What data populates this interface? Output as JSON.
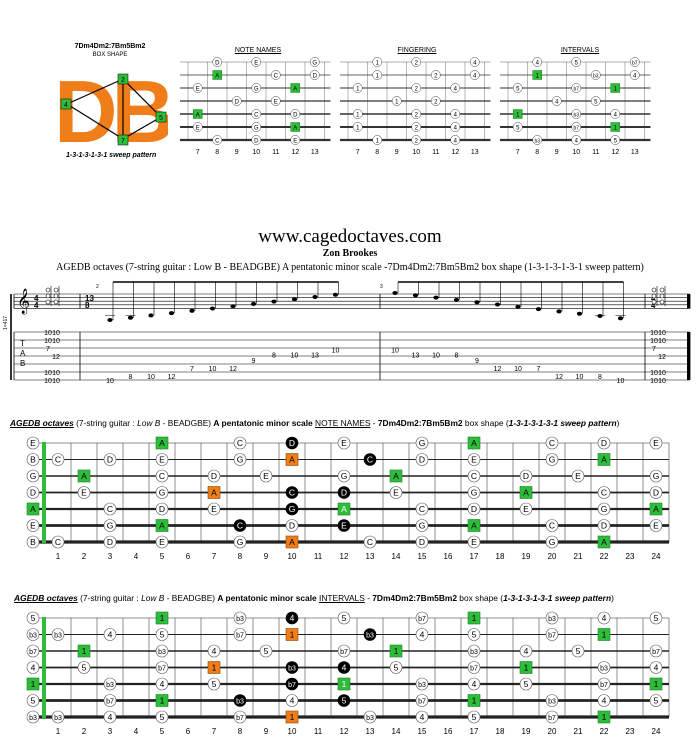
{
  "logo": {
    "title": "7Dm4Dm2:7Bm5Bm2",
    "subtitle": "BOX SHAPE",
    "letters": "DB",
    "finger_numbers": [
      "4",
      "2",
      "5",
      "7"
    ],
    "pattern": "1-3-1-3-1-3-1 sweep pattern"
  },
  "mini": {
    "titles": [
      "NOTE NAMES",
      "FINGERING",
      "INTERVALS"
    ],
    "frets": [
      "7",
      "8",
      "9",
      "10",
      "11",
      "12",
      "13"
    ],
    "notes_strings": [
      [
        "",
        "D",
        "",
        "E",
        "",
        "",
        "G"
      ],
      [
        "",
        "A",
        "",
        "",
        "C",
        "",
        "D"
      ],
      [
        "E",
        "",
        "",
        "G",
        "",
        "A",
        ""
      ],
      [
        "",
        "",
        "D",
        "",
        "E",
        "",
        ""
      ],
      [
        "A",
        "",
        "",
        "C",
        "",
        "D",
        ""
      ],
      [
        "E",
        "",
        "",
        "G",
        "",
        "A",
        ""
      ],
      [
        "",
        "C",
        "",
        "D",
        "",
        "E",
        ""
      ]
    ],
    "finger_strings": [
      [
        "",
        "1",
        "",
        "2",
        "",
        "",
        "4"
      ],
      [
        "",
        "1",
        "",
        "",
        "2",
        "",
        "4"
      ],
      [
        "1",
        "",
        "",
        "2",
        "",
        "4",
        ""
      ],
      [
        "",
        "",
        "1",
        "",
        "2",
        "",
        ""
      ],
      [
        "1",
        "",
        "",
        "2",
        "",
        "4",
        ""
      ],
      [
        "1",
        "",
        "",
        "2",
        "",
        "4",
        ""
      ],
      [
        "",
        "1",
        "",
        "2",
        "",
        "4",
        ""
      ]
    ],
    "interval_strings": [
      [
        "",
        "4",
        "",
        "5",
        "",
        "",
        "b7"
      ],
      [
        "",
        "1",
        "",
        "",
        "b3",
        "",
        "4"
      ],
      [
        "5",
        "",
        "",
        "b7",
        "",
        "1",
        ""
      ],
      [
        "",
        "",
        "4",
        "",
        "5",
        "",
        ""
      ],
      [
        "1",
        "",
        "",
        "b3",
        "",
        "4",
        ""
      ],
      [
        "5",
        "",
        "",
        "b7",
        "",
        "1",
        ""
      ],
      [
        "",
        "b3",
        "",
        "4",
        "",
        "5",
        ""
      ]
    ],
    "mini_extra": [
      "b7",
      "4",
      "b3"
    ]
  },
  "header": {
    "site": "www.cagedoctaves.com",
    "composer": "Zon Brookes",
    "description": "AGEDB octaves (7-string guitar : Low B - BEADGBE) A pentatonic minor scale  -7Dm4Dm2:7Bm5Bm2 box shape (1-3-1-3-1-3-1 sweep pattern)"
  },
  "score": {
    "time_sig_top": "4",
    "time_sig_bottom": "4",
    "mid_sig_top": "13",
    "mid_sig_bottom": "8",
    "tab_label": [
      "T",
      "A",
      "B"
    ],
    "side_text": "1=417",
    "measure_numbers": [
      "2",
      "3"
    ],
    "start_chord": [
      "10",
      "10",
      "7",
      "12",
      "10",
      "10"
    ],
    "end_chord": [
      "10",
      "10",
      "7",
      "12",
      "10",
      "10"
    ],
    "up_notes": [
      "10",
      "8",
      "10",
      "12",
      "7",
      "10",
      "12",
      "9",
      "8",
      "10",
      "13",
      "10"
    ],
    "down_notes": [
      "10",
      "13",
      "10",
      "8",
      "9",
      "12",
      "10",
      "7",
      "12",
      "10",
      "8",
      "10"
    ]
  },
  "board1": {
    "title_parts": [
      "AGEDB octaves",
      " (7-string guitar : ",
      "Low B",
      " - BEADGBE) ",
      "A pentatonic minor scale",
      " ",
      "NOTE NAMES",
      " - ",
      "7Dm4Dm2:7Bm5Bm2",
      " box shape (",
      "1-3-1-3-1-3-1 sweep pattern",
      ")"
    ],
    "open": [
      "E",
      "B",
      "G",
      "D",
      "A",
      "E",
      "B"
    ],
    "strings": [
      [
        "",
        "",
        "",
        "",
        "A",
        "",
        "",
        "C",
        "",
        "D",
        "",
        "E",
        "",
        "",
        "G",
        "",
        "A",
        "",
        "",
        "C",
        "",
        "D",
        "",
        "E"
      ],
      [
        "C",
        "",
        "D",
        "",
        "E",
        "",
        "",
        "G",
        "",
        "A",
        "",
        "",
        "C",
        "",
        "D",
        "",
        "E",
        "",
        "",
        "G",
        "",
        "A",
        "",
        ""
      ],
      [
        "",
        "A",
        "",
        "",
        "C",
        "",
        "D",
        "",
        "E",
        "",
        "",
        "G",
        "",
        "A",
        "",
        "",
        "C",
        "",
        "D",
        "",
        "E",
        "",
        "",
        "G"
      ],
      [
        "",
        "E",
        "",
        "",
        "G",
        "",
        "A",
        "",
        "",
        "C",
        "",
        "D",
        "",
        "E",
        "",
        "",
        "G",
        "",
        "A",
        "",
        "",
        "C",
        "",
        "D"
      ],
      [
        "",
        "",
        "C",
        "",
        "D",
        "",
        "E",
        "",
        "",
        "G",
        "",
        "A",
        "",
        "",
        "C",
        "",
        "D",
        "",
        "E",
        "",
        "",
        "G",
        "",
        "A"
      ],
      [
        "",
        "",
        "G",
        "",
        "A",
        "",
        "",
        "C",
        "",
        "D",
        "",
        "E",
        "",
        "",
        "G",
        "",
        "A",
        "",
        "",
        "C",
        "",
        "D",
        "",
        "E"
      ],
      [
        "C",
        "",
        "D",
        "",
        "E",
        "",
        "",
        "G",
        "",
        "A",
        "",
        "",
        "C",
        "",
        "D",
        "",
        "E",
        "",
        "",
        "G",
        "",
        "A",
        "",
        ""
      ]
    ],
    "frets": [
      "1",
      "2",
      "3",
      "4",
      "5",
      "6",
      "7",
      "8",
      "9",
      "10",
      "11",
      "12",
      "13",
      "14",
      "15",
      "16",
      "17",
      "18",
      "19",
      "20",
      "21",
      "22",
      "23",
      "24"
    ]
  },
  "board2": {
    "title_parts": [
      "AGEDB octaves",
      " (7-string guitar : ",
      "Low B",
      " - BEADGBE) ",
      "A pentatonic minor scale",
      " ",
      "INTERVALS",
      " - ",
      "7Dm4Dm2:7Bm5Bm2",
      " box shape (",
      "1-3-1-3-1-3-1 sweep pattern",
      ")"
    ],
    "open": [
      "5",
      "b3",
      "b7",
      "4",
      "1",
      "5",
      "b3"
    ],
    "strings": [
      [
        "",
        "",
        "",
        "",
        "1",
        "",
        "",
        "b3",
        "",
        "4",
        "",
        "5",
        "",
        "",
        "b7",
        "",
        "1",
        "",
        "",
        "b3",
        "",
        "4",
        "",
        "5"
      ],
      [
        "b3",
        "",
        "4",
        "",
        "5",
        "",
        "",
        "b7",
        "",
        "1",
        "",
        "",
        "b3",
        "",
        "4",
        "",
        "5",
        "",
        "",
        "b7",
        "",
        "1",
        "",
        ""
      ],
      [
        "",
        "1",
        "",
        "",
        "b3",
        "",
        "4",
        "",
        "5",
        "",
        "",
        "b7",
        "",
        "1",
        "",
        "",
        "b3",
        "",
        "4",
        "",
        "5",
        "",
        "",
        "b7"
      ],
      [
        "",
        "5",
        "",
        "",
        "b7",
        "",
        "1",
        "",
        "",
        "b3",
        "",
        "4",
        "",
        "5",
        "",
        "",
        "b7",
        "",
        "1",
        "",
        "",
        "b3",
        "",
        "4"
      ],
      [
        "",
        "",
        "b3",
        "",
        "4",
        "",
        "5",
        "",
        "",
        "b7",
        "",
        "1",
        "",
        "",
        "b3",
        "",
        "4",
        "",
        "5",
        "",
        "",
        "b7",
        "",
        "1"
      ],
      [
        "",
        "",
        "b7",
        "",
        "1",
        "",
        "",
        "b3",
        "",
        "4",
        "",
        "5",
        "",
        "",
        "b7",
        "",
        "1",
        "",
        "",
        "b3",
        "",
        "4",
        "",
        "5"
      ],
      [
        "b3",
        "",
        "4",
        "",
        "5",
        "",
        "",
        "b7",
        "",
        "1",
        "",
        "",
        "b3",
        "",
        "4",
        "",
        "5",
        "",
        "",
        "b7",
        "",
        "1",
        "",
        ""
      ]
    ],
    "frets": [
      "1",
      "2",
      "3",
      "4",
      "5",
      "6",
      "7",
      "8",
      "9",
      "10",
      "11",
      "12",
      "13",
      "14",
      "15",
      "16",
      "17",
      "18",
      "19",
      "20",
      "21",
      "22",
      "23",
      "24"
    ]
  },
  "highlights": {
    "green_root": "#2ebd3a",
    "orange_box": "#ef7d1a",
    "black_box": "#000000",
    "string_highlight": "#2ebd3a",
    "mini_fade": "#9fdcdc",
    "black_cells": [
      [
        1,
        10
      ],
      [
        2,
        9
      ],
      [
        2,
        13
      ],
      [
        3,
        11
      ],
      [
        4,
        10
      ],
      [
        4,
        12
      ],
      [
        5,
        10
      ],
      [
        5,
        12
      ],
      [
        6,
        8
      ],
      [
        6,
        9
      ],
      [
        6,
        12
      ]
    ],
    "orange_cells": [
      [
        2,
        10
      ],
      [
        4,
        7
      ],
      [
        7,
        10
      ]
    ],
    "green_cells": [
      [
        1,
        5
      ],
      [
        1,
        17
      ],
      [
        2,
        22
      ],
      [
        3,
        2
      ],
      [
        3,
        14
      ],
      [
        4,
        19
      ],
      [
        5,
        0
      ],
      [
        5,
        12
      ],
      [
        5,
        24
      ],
      [
        6,
        5
      ],
      [
        6,
        17
      ],
      [
        7,
        22
      ]
    ]
  }
}
